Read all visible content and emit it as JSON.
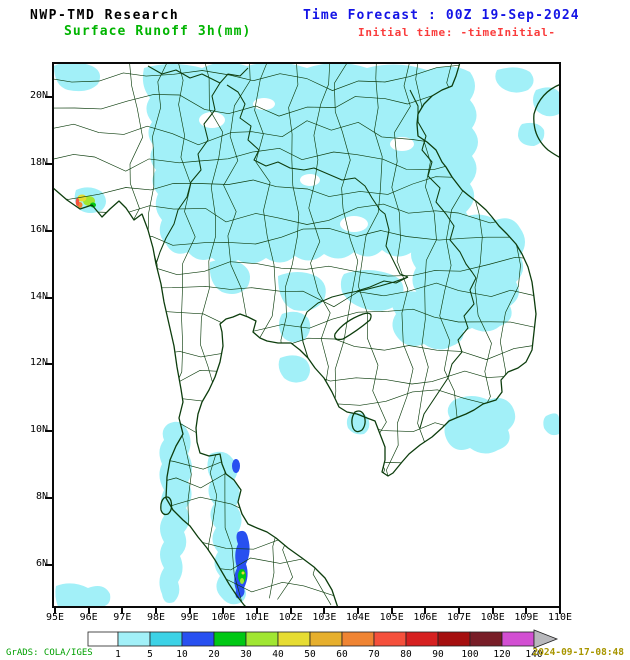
{
  "header": {
    "title": "NWP-TMD Research",
    "variable": "Surface Runoff 3h(mm)",
    "forecast_time": "Time Forecast : 00Z 19-Sep-2024",
    "initial_time": "Initial time: -timeInitial-"
  },
  "map": {
    "lat_labels": [
      "20N",
      "18N",
      "16N",
      "14N",
      "12N",
      "10N",
      "8N",
      "6N"
    ],
    "lon_labels": [
      "95E",
      "96E",
      "97E",
      "98E",
      "99E",
      "100E",
      "101E",
      "102E",
      "103E",
      "104E",
      "105E",
      "106E",
      "107E",
      "108E",
      "109E",
      "110E"
    ]
  },
  "colorbar": {
    "levels": [
      "1",
      "5",
      "10",
      "20",
      "30",
      "40",
      "50",
      "60",
      "70",
      "80",
      "90",
      "100",
      "120",
      "140"
    ],
    "colors": [
      "#ffffff",
      "#a2f0f8",
      "#3cd2e6",
      "#2850f0",
      "#00c814",
      "#a0e632",
      "#e6dc32",
      "#e6af2d",
      "#ef8433",
      "#f5503c",
      "#d62020",
      "#a50f0f",
      "#781e28",
      "#d24fd2",
      "#b8b8bc"
    ]
  },
  "footer": {
    "credit": "GrADS: COLA/IGES",
    "timestamp": "2024-09-17-08:48"
  },
  "colors": {
    "shade": "#a2f0f8",
    "blue": "#2850f0",
    "green": "#00c814",
    "chartreuse": "#a0e632",
    "yellow": "#e6dc32",
    "orange": "#ef8433",
    "red": "#f5503c",
    "line": "#0d3d0d",
    "title_blue": "#1414e6",
    "title_green": "#00b400",
    "title_red": "#fa3c3c",
    "credit_green": "#00a000",
    "stamp_yellow": "#a89600"
  }
}
